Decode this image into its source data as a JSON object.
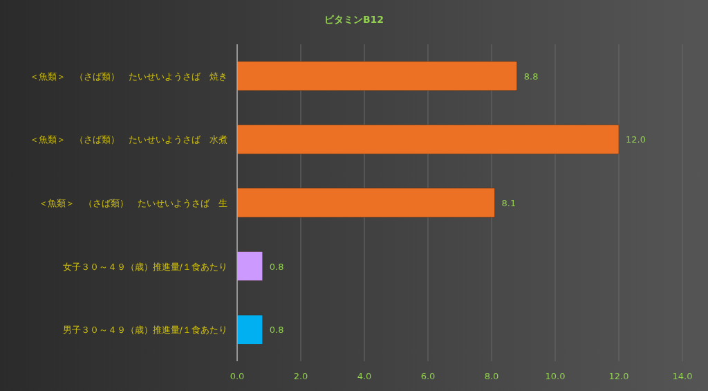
{
  "chart_data": {
    "type": "bar",
    "orientation": "horizontal",
    "title": "ビタミンB12",
    "categories": [
      "＜魚類＞　（さば類）　たいせいようさば　焼き",
      "＜魚類＞　（さば類）　たいせいようさば　水煮",
      "＜魚類＞　（さば類）　たいせいようさば　生",
      "女子３０～４９（歳）推進量/１食あたり",
      "男子３０～４９（歳）推進量/１食あたり"
    ],
    "values": [
      8.8,
      12.0,
      8.1,
      0.8,
      0.8
    ],
    "value_labels": [
      "8.8",
      "12.0",
      "8.1",
      "0.8",
      "0.8"
    ],
    "colors": [
      "#ed7125",
      "#ed7125",
      "#ed7125",
      "#cc99ff",
      "#00b0f0"
    ],
    "xlim": [
      0,
      14
    ],
    "xticks": [
      {
        "value": 0,
        "label": "0.0"
      },
      {
        "value": 2,
        "label": "2.0"
      },
      {
        "value": 4,
        "label": "4.0"
      },
      {
        "value": 6,
        "label": "6.0"
      },
      {
        "value": 8,
        "label": "8.0"
      },
      {
        "value": 10,
        "label": "10.0"
      },
      {
        "value": 12,
        "label": "12.0"
      },
      {
        "value": 14,
        "label": "14.0"
      }
    ],
    "grid": "x"
  }
}
